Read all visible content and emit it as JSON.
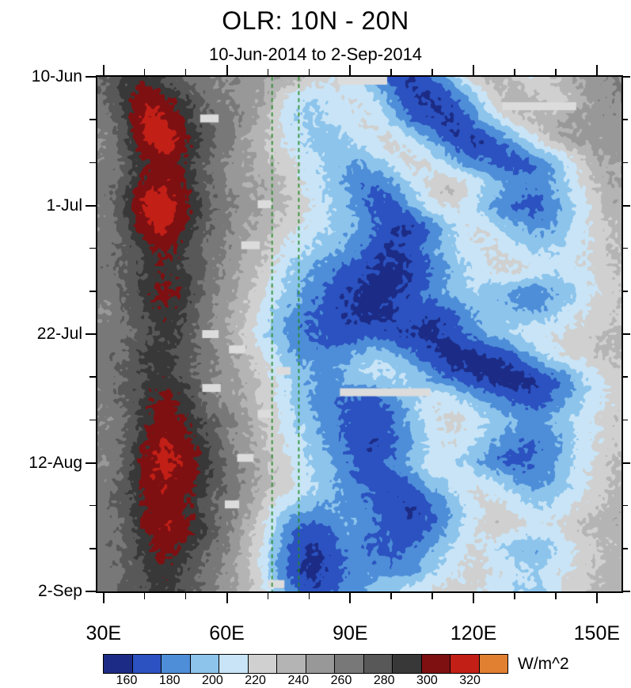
{
  "header": {
    "title": "OLR: 10N - 20N",
    "subtitle": "10-Jun-2014 to 2-Sep-2014"
  },
  "colorbar": {
    "tick_labels": [
      "160",
      "180",
      "200",
      "220",
      "240",
      "260",
      "280",
      "300",
      "320"
    ],
    "unit_label": "W/m^2"
  },
  "chart_data": {
    "type": "heatmap",
    "title": "OLR: 10N - 20N",
    "subtitle": "10-Jun-2014 to 2-Sep-2014",
    "value_unit": "W/m^2",
    "plot_lon_range": [
      28.5,
      156
    ],
    "plot_day_range": [
      0,
      84
    ],
    "x_major_ticks": [
      {
        "value": 30,
        "label": "30E"
      },
      {
        "value": 60,
        "label": "60E"
      },
      {
        "value": 90,
        "label": "90E"
      },
      {
        "value": 120,
        "label": "120E"
      },
      {
        "value": 150,
        "label": "150E"
      }
    ],
    "x_minor_ticks": [
      40,
      50,
      70,
      80,
      100,
      110,
      130,
      140
    ],
    "y_major_ticks": [
      {
        "day": 0,
        "label": "10-Jun"
      },
      {
        "day": 21,
        "label": "1-Jul"
      },
      {
        "day": 42,
        "label": "22-Jul"
      },
      {
        "day": 63,
        "label": "12-Aug"
      },
      {
        "day": 84,
        "label": "2-Sep"
      }
    ],
    "y_minor_ticks": [
      7,
      14,
      28,
      35,
      49,
      56,
      70,
      77
    ],
    "levels": [
      160,
      175,
      190,
      205,
      220,
      232,
      244,
      256,
      268,
      280,
      290,
      305,
      320
    ],
    "palette": [
      "#1c2c86",
      "#2b52c0",
      "#4e8ed8",
      "#8cc4ec",
      "#c8e4f6",
      "#d0d0d0",
      "#b4b4b4",
      "#989898",
      "#787878",
      "#585858",
      "#383838",
      "#7e1012",
      "#c21f17",
      "#e08030"
    ],
    "reference_lines_lon": [
      71,
      77.5
    ],
    "reference_line_color": "#228b22",
    "missing_color": "#dcdcdc",
    "missing_segments": [
      {
        "day": 0.3,
        "lon_start": 87,
        "lon_end": 99
      },
      {
        "day": 4.8,
        "lon_start": 127,
        "lon_end": 145
      },
      {
        "day": 6.8,
        "lon_start": 53.5,
        "lon_end": 58
      },
      {
        "day": 20.8,
        "lon_start": 67.5,
        "lon_end": 71
      },
      {
        "day": 27.5,
        "lon_start": 63.5,
        "lon_end": 68
      },
      {
        "day": 42,
        "lon_start": 54,
        "lon_end": 58
      },
      {
        "day": 44.5,
        "lon_start": 60.5,
        "lon_end": 64.5
      },
      {
        "day": 48,
        "lon_start": 72,
        "lon_end": 75.5
      },
      {
        "day": 50.8,
        "lon_start": 54,
        "lon_end": 58.5
      },
      {
        "day": 51.5,
        "lon_start": 87.5,
        "lon_end": 109.5
      },
      {
        "day": 55,
        "lon_start": 67.5,
        "lon_end": 71
      },
      {
        "day": 62.2,
        "lon_start": 62.5,
        "lon_end": 66.5
      },
      {
        "day": 69.8,
        "lon_start": 59.5,
        "lon_end": 63
      },
      {
        "day": 82.8,
        "lon_start": 70,
        "lon_end": 74
      }
    ],
    "grid_lons": [
      30,
      35,
      40,
      45,
      50,
      55,
      60,
      65,
      70,
      75,
      80,
      85,
      90,
      95,
      100,
      105,
      110,
      115,
      120,
      125,
      130,
      135,
      140,
      145,
      150,
      155
    ],
    "grid_days": [
      0,
      3.5,
      7,
      10.5,
      14,
      17.5,
      21,
      24.5,
      28,
      31.5,
      35,
      38.5,
      42,
      45.5,
      49,
      52.5,
      56,
      59.5,
      63,
      66.5,
      70,
      73.5,
      77,
      80.5,
      84
    ],
    "grid": [
      [
        270,
        280,
        285,
        275,
        265,
        260,
        255,
        250,
        245,
        240,
        230,
        222,
        212,
        190,
        168,
        158,
        175,
        200,
        228,
        240,
        230,
        220,
        235,
        245,
        250,
        255
      ],
      [
        265,
        285,
        300,
        295,
        280,
        265,
        255,
        250,
        240,
        215,
        205,
        210,
        220,
        210,
        185,
        163,
        158,
        170,
        195,
        225,
        240,
        235,
        225,
        240,
        250,
        255
      ],
      [
        260,
        280,
        310,
        305,
        285,
        270,
        260,
        250,
        235,
        210,
        200,
        205,
        215,
        220,
        200,
        175,
        163,
        158,
        180,
        205,
        225,
        235,
        240,
        245,
        250,
        250
      ],
      [
        255,
        275,
        305,
        315,
        295,
        275,
        260,
        245,
        230,
        215,
        205,
        195,
        205,
        215,
        225,
        210,
        190,
        168,
        158,
        170,
        190,
        215,
        235,
        245,
        250,
        250
      ],
      [
        260,
        270,
        290,
        300,
        285,
        270,
        255,
        245,
        235,
        225,
        210,
        200,
        190,
        196,
        210,
        225,
        215,
        195,
        180,
        174,
        164,
        175,
        195,
        220,
        240,
        245
      ],
      [
        265,
        275,
        295,
        305,
        290,
        270,
        255,
        245,
        240,
        230,
        215,
        200,
        185,
        174,
        185,
        205,
        225,
        230,
        215,
        200,
        185,
        180,
        195,
        215,
        235,
        245
      ],
      [
        260,
        280,
        310,
        315,
        295,
        275,
        260,
        250,
        240,
        230,
        220,
        205,
        190,
        174,
        168,
        190,
        215,
        225,
        205,
        185,
        174,
        168,
        185,
        205,
        230,
        240
      ],
      [
        255,
        275,
        300,
        310,
        290,
        270,
        255,
        245,
        235,
        225,
        215,
        205,
        195,
        180,
        163,
        158,
        180,
        205,
        220,
        210,
        195,
        185,
        190,
        210,
        225,
        235
      ],
      [
        260,
        270,
        285,
        295,
        280,
        265,
        255,
        245,
        230,
        215,
        205,
        195,
        185,
        170,
        158,
        164,
        185,
        205,
        215,
        220,
        210,
        200,
        205,
        215,
        225,
        235
      ],
      [
        265,
        270,
        280,
        290,
        280,
        265,
        250,
        240,
        225,
        205,
        190,
        180,
        170,
        160,
        154,
        160,
        175,
        195,
        210,
        220,
        225,
        215,
        210,
        215,
        225,
        230
      ],
      [
        260,
        270,
        285,
        295,
        285,
        265,
        250,
        235,
        220,
        200,
        185,
        170,
        160,
        154,
        154,
        164,
        180,
        195,
        205,
        195,
        185,
        180,
        190,
        205,
        220,
        230
      ],
      [
        255,
        265,
        280,
        290,
        280,
        260,
        245,
        230,
        210,
        190,
        175,
        165,
        158,
        154,
        160,
        170,
        164,
        175,
        190,
        200,
        195,
        190,
        200,
        215,
        225,
        230
      ],
      [
        260,
        265,
        275,
        285,
        275,
        260,
        245,
        225,
        205,
        185,
        175,
        170,
        164,
        170,
        164,
        158,
        154,
        164,
        180,
        195,
        205,
        215,
        220,
        225,
        230,
        235
      ],
      [
        265,
        270,
        280,
        285,
        275,
        260,
        250,
        235,
        215,
        195,
        185,
        180,
        190,
        200,
        195,
        180,
        164,
        154,
        154,
        160,
        175,
        195,
        215,
        225,
        230,
        235
      ],
      [
        260,
        270,
        280,
        285,
        275,
        260,
        250,
        240,
        225,
        205,
        190,
        185,
        195,
        205,
        210,
        200,
        185,
        170,
        158,
        154,
        150,
        160,
        175,
        195,
        215,
        225
      ],
      [
        260,
        270,
        285,
        295,
        285,
        265,
        250,
        240,
        225,
        205,
        190,
        180,
        174,
        170,
        180,
        200,
        215,
        210,
        195,
        180,
        170,
        164,
        175,
        195,
        215,
        225
      ],
      [
        255,
        265,
        285,
        300,
        290,
        275,
        260,
        245,
        230,
        210,
        195,
        180,
        170,
        164,
        175,
        195,
        215,
        225,
        215,
        200,
        190,
        185,
        195,
        210,
        220,
        230
      ],
      [
        260,
        270,
        290,
        305,
        295,
        280,
        260,
        245,
        230,
        215,
        200,
        185,
        170,
        160,
        170,
        190,
        210,
        220,
        205,
        190,
        180,
        174,
        185,
        205,
        220,
        230
      ],
      [
        255,
        270,
        295,
        310,
        300,
        285,
        265,
        250,
        235,
        220,
        205,
        190,
        175,
        164,
        175,
        195,
        215,
        210,
        195,
        180,
        170,
        175,
        190,
        210,
        225,
        235
      ],
      [
        260,
        275,
        295,
        305,
        295,
        280,
        265,
        250,
        235,
        225,
        210,
        195,
        180,
        170,
        164,
        175,
        195,
        210,
        220,
        210,
        195,
        185,
        195,
        210,
        225,
        235
      ],
      [
        265,
        275,
        290,
        300,
        290,
        275,
        260,
        245,
        225,
        205,
        195,
        190,
        185,
        175,
        164,
        158,
        175,
        195,
        215,
        225,
        215,
        205,
        210,
        220,
        230,
        240
      ],
      [
        260,
        270,
        290,
        305,
        295,
        280,
        260,
        240,
        215,
        180,
        170,
        175,
        190,
        180,
        170,
        164,
        175,
        195,
        215,
        230,
        225,
        215,
        220,
        230,
        235,
        240
      ],
      [
        265,
        270,
        285,
        295,
        285,
        270,
        255,
        235,
        210,
        175,
        158,
        164,
        180,
        174,
        170,
        175,
        190,
        210,
        220,
        210,
        195,
        190,
        205,
        220,
        230,
        235
      ],
      [
        260,
        268,
        280,
        288,
        278,
        265,
        250,
        235,
        205,
        170,
        156,
        164,
        180,
        185,
        180,
        185,
        200,
        215,
        225,
        220,
        210,
        205,
        215,
        225,
        232,
        238
      ],
      [
        262,
        268,
        278,
        285,
        275,
        262,
        250,
        238,
        215,
        185,
        163,
        170,
        180,
        195,
        205,
        212,
        222,
        228,
        222,
        212,
        204,
        200,
        214,
        226,
        234,
        240
      ]
    ]
  }
}
